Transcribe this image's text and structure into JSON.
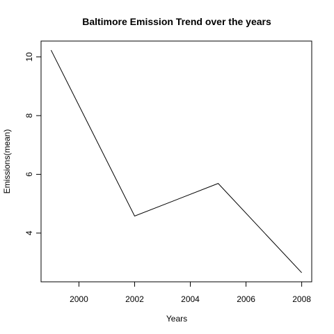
{
  "chart_data": {
    "type": "line",
    "title": "Baltimore Emission Trend over the years",
    "xlabel": "Years",
    "ylabel": "Emissions(mean)",
    "x": [
      1999,
      2002,
      2005,
      2008
    ],
    "series": [
      {
        "values": [
          10.23,
          4.58,
          5.69,
          2.65
        ]
      }
    ],
    "x_ticks": [
      2000,
      2002,
      2004,
      2006,
      2008
    ],
    "y_ticks": [
      4,
      6,
      8,
      10
    ],
    "xlim": [
      1998.64,
      2008.36
    ],
    "ylim": [
      2.34,
      10.54
    ],
    "grid": false,
    "legend": "none",
    "colors": {
      "line": "#000000",
      "axis": "#000000",
      "background": "#ffffff"
    }
  }
}
